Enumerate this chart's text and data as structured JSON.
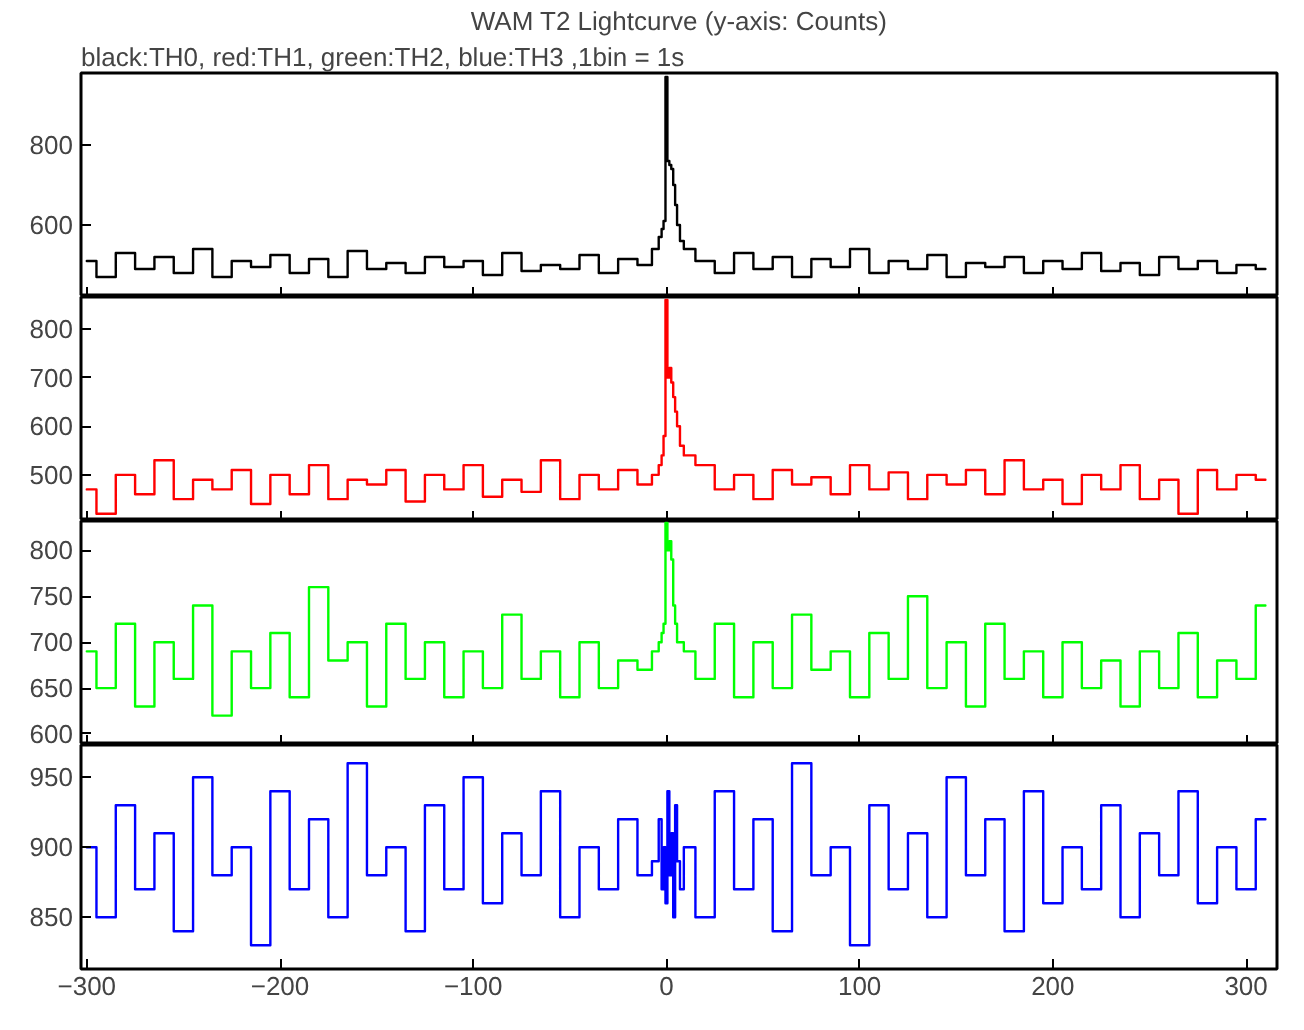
{
  "chart_data": [
    {
      "type": "step",
      "title": "WAM T2 Lightcurve (y-axis: Counts)",
      "subtitle": "black:TH0, red:TH1, green:TH2, blue:TH3 ,1bin = 1s",
      "tick_labels": "y",
      "x": [
        -300,
        -290,
        -280,
        -270,
        -260,
        -250,
        -240,
        -230,
        -220,
        -210,
        -200,
        -190,
        -180,
        -170,
        -160,
        -150,
        -140,
        -130,
        -120,
        -110,
        -100,
        -90,
        -80,
        -70,
        -60,
        -50,
        -40,
        -30,
        -20,
        -10,
        -5,
        -3,
        -2,
        -1,
        0,
        1,
        2,
        3,
        4,
        5,
        6,
        8,
        10,
        20,
        30,
        40,
        50,
        60,
        70,
        80,
        90,
        100,
        110,
        120,
        130,
        140,
        150,
        160,
        170,
        180,
        190,
        200,
        210,
        220,
        230,
        240,
        250,
        260,
        270,
        280,
        290,
        300,
        310
      ],
      "xlim": [
        -303,
        316
      ],
      "xticks": [
        -300,
        -200,
        -100,
        0,
        100,
        200,
        300
      ],
      "ylim": [
        420,
        980
      ],
      "yticks": [
        600,
        800
      ],
      "series": [
        {
          "color": "#000000",
          "values": [
            510,
            470,
            530,
            490,
            520,
            480,
            540,
            470,
            510,
            495,
            525,
            480,
            515,
            470,
            535,
            490,
            505,
            480,
            520,
            495,
            510,
            475,
            530,
            485,
            500,
            490,
            525,
            480,
            515,
            500,
            540,
            570,
            590,
            610,
            970,
            760,
            750,
            740,
            700,
            650,
            600,
            560,
            540,
            510,
            480,
            530,
            490,
            520,
            470,
            515,
            495,
            540,
            480,
            510,
            490,
            525,
            470,
            505,
            495,
            520,
            480,
            510,
            490,
            530,
            485,
            505,
            475,
            520,
            490,
            510,
            480,
            500,
            490
          ]
        }
      ]
    },
    {
      "type": "step",
      "tick_labels": "y",
      "x": [
        -300,
        -290,
        -280,
        -270,
        -260,
        -250,
        -240,
        -230,
        -220,
        -210,
        -200,
        -190,
        -180,
        -170,
        -160,
        -150,
        -140,
        -130,
        -120,
        -110,
        -100,
        -90,
        -80,
        -70,
        -60,
        -50,
        -40,
        -30,
        -20,
        -10,
        -5,
        -3,
        -2,
        -1,
        0,
        1,
        2,
        3,
        4,
        5,
        6,
        8,
        10,
        20,
        30,
        40,
        50,
        60,
        70,
        80,
        90,
        100,
        110,
        120,
        130,
        140,
        150,
        160,
        170,
        180,
        190,
        200,
        210,
        220,
        230,
        240,
        250,
        260,
        270,
        280,
        290,
        300,
        310
      ],
      "xlim": [
        -303,
        316
      ],
      "xticks": [
        -300,
        -200,
        -100,
        0,
        100,
        200,
        300
      ],
      "ylim": [
        405,
        866
      ],
      "yticks": [
        500,
        600,
        700,
        800
      ],
      "series": [
        {
          "color": "#ff0000",
          "values": [
            470,
            420,
            500,
            460,
            530,
            450,
            490,
            470,
            510,
            440,
            500,
            460,
            520,
            450,
            490,
            480,
            510,
            445,
            500,
            470,
            520,
            455,
            490,
            465,
            530,
            450,
            500,
            470,
            510,
            480,
            500,
            520,
            540,
            580,
            860,
            700,
            720,
            690,
            660,
            630,
            600,
            560,
            540,
            520,
            470,
            500,
            450,
            510,
            480,
            495,
            460,
            520,
            470,
            505,
            450,
            500,
            480,
            510,
            460,
            530,
            470,
            490,
            440,
            500,
            470,
            520,
            450,
            490,
            420,
            510,
            470,
            500,
            490
          ]
        }
      ]
    },
    {
      "type": "step",
      "tick_labels": "y",
      "x": [
        -300,
        -290,
        -280,
        -270,
        -260,
        -250,
        -240,
        -230,
        -220,
        -210,
        -200,
        -190,
        -180,
        -170,
        -160,
        -150,
        -140,
        -130,
        -120,
        -110,
        -100,
        -90,
        -80,
        -70,
        -60,
        -50,
        -40,
        -30,
        -20,
        -10,
        -5,
        -3,
        -2,
        -1,
        0,
        1,
        2,
        3,
        4,
        5,
        6,
        8,
        10,
        20,
        30,
        40,
        50,
        60,
        70,
        80,
        90,
        100,
        110,
        120,
        130,
        140,
        150,
        160,
        170,
        180,
        190,
        200,
        210,
        220,
        230,
        240,
        250,
        260,
        270,
        280,
        290,
        300,
        310
      ],
      "xlim": [
        -303,
        316
      ],
      "xticks": [
        -300,
        -200,
        -100,
        0,
        100,
        200,
        300
      ],
      "ylim": [
        588,
        832
      ],
      "yticks": [
        600,
        650,
        700,
        750,
        800
      ],
      "series": [
        {
          "color": "#00ff00",
          "values": [
            690,
            650,
            720,
            630,
            700,
            660,
            740,
            620,
            690,
            650,
            710,
            640,
            760,
            680,
            700,
            630,
            720,
            660,
            700,
            640,
            690,
            650,
            730,
            660,
            690,
            640,
            700,
            650,
            680,
            670,
            690,
            700,
            710,
            720,
            830,
            800,
            810,
            790,
            740,
            720,
            700,
            700,
            690,
            660,
            720,
            640,
            700,
            650,
            730,
            670,
            690,
            640,
            710,
            660,
            750,
            650,
            700,
            630,
            720,
            660,
            690,
            640,
            700,
            650,
            680,
            630,
            690,
            650,
            710,
            640,
            680,
            660,
            740
          ]
        }
      ]
    },
    {
      "type": "step",
      "x": [
        -300,
        -290,
        -280,
        -270,
        -260,
        -250,
        -240,
        -230,
        -220,
        -210,
        -200,
        -190,
        -180,
        -170,
        -160,
        -150,
        -140,
        -130,
        -120,
        -110,
        -100,
        -90,
        -80,
        -70,
        -60,
        -50,
        -40,
        -30,
        -20,
        -10,
        -5,
        -3,
        -2,
        -1,
        0,
        1,
        2,
        3,
        4,
        5,
        6,
        8,
        10,
        20,
        30,
        40,
        50,
        60,
        70,
        80,
        90,
        100,
        110,
        120,
        130,
        140,
        150,
        160,
        170,
        180,
        190,
        200,
        210,
        220,
        230,
        240,
        250,
        260,
        270,
        280,
        290,
        300,
        310
      ],
      "xlim": [
        -303,
        316
      ],
      "xticks": [
        -300,
        -200,
        -100,
        0,
        100,
        200,
        300
      ],
      "ylim": [
        813,
        973
      ],
      "yticks": [
        850,
        900,
        950
      ],
      "series": [
        {
          "color": "#0000ff",
          "values": [
            900,
            850,
            930,
            870,
            910,
            840,
            950,
            880,
            900,
            830,
            940,
            870,
            920,
            850,
            960,
            880,
            900,
            840,
            930,
            870,
            950,
            860,
            910,
            880,
            940,
            850,
            900,
            870,
            920,
            880,
            890,
            920,
            870,
            900,
            860,
            940,
            880,
            910,
            850,
            930,
            890,
            870,
            900,
            850,
            940,
            870,
            920,
            840,
            960,
            880,
            900,
            830,
            930,
            870,
            910,
            850,
            950,
            880,
            920,
            840,
            940,
            860,
            900,
            870,
            930,
            850,
            910,
            880,
            940,
            860,
            900,
            870,
            920
          ]
        }
      ]
    }
  ]
}
